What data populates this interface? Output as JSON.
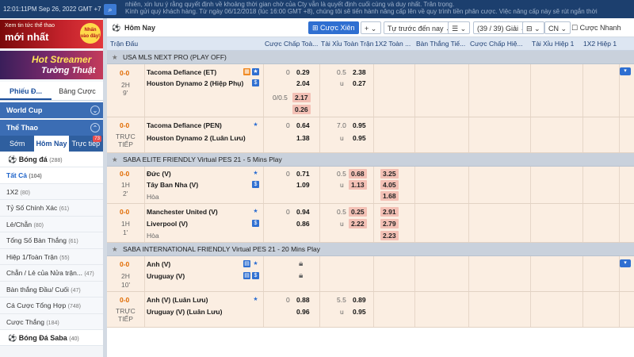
{
  "topbar": {
    "clock": "12:01:11PM Sep 26, 2022 GMT +7",
    "marquee_line1": "nhiên, xin lưu ý rằng quyết định về khoảng thời gian chờ của Cty vẫn là quyết định cuối cùng và duy nhất. Trân trọng.",
    "marquee_line2": "Kính gửi quý khách hàng. Từ ngày 06/12/2018 (lúc 16:00 GMT +8), chúng tôi sẽ tiến hành nâng cấp lên về quy trình tiền phân cược. Việc nâng cấp này sẽ rút ngắn thời"
  },
  "sidebar": {
    "banner1": {
      "small": "Xem tin tức thể thao",
      "big": "mới nhất",
      "badge": "Nhấn vào đây!"
    },
    "banner2": {
      "big": "Hot Streamer",
      "big2": "Tường Thuật"
    },
    "tabs": [
      "Phiếu Đ...",
      "Bảng Cược"
    ],
    "world_cup": "World Cup",
    "the_thao": "Thể Thao",
    "subtabs": [
      "Sớm",
      "Hôm Nay",
      "Trực tiếp"
    ],
    "live_count": "73",
    "bong_da": {
      "label": "Bóng đá",
      "count": "(288)"
    },
    "menu": [
      {
        "label": "Tất Cả",
        "count": "(104)"
      },
      {
        "label": "1X2",
        "count": "(80)"
      },
      {
        "label": "Tỷ Số Chính Xác",
        "count": "(61)"
      },
      {
        "label": "Lẻ/Chẵn",
        "count": "(80)"
      },
      {
        "label": "Tổng Số Bàn Thắng",
        "count": "(61)"
      },
      {
        "label": "Hiệp 1/Toàn Trận",
        "count": "(55)"
      },
      {
        "label": "Chẵn / Lẻ của Nửa trận...",
        "count": "(47)"
      },
      {
        "label": "Bàn thắng Đầu/ Cuối",
        "count": "(47)"
      },
      {
        "label": "Cá Cược Tổng Hợp",
        "count": "(748)"
      },
      {
        "label": "Cược Thắng",
        "count": "(184)"
      }
    ],
    "bong_da_saba": {
      "label": "Bóng Đá Saba",
      "count": "(40)"
    }
  },
  "toolbar": {
    "title": "Hôm Nay",
    "cuoc_xien": "Cược Xiên",
    "plus": "+",
    "sort": "Tự trước đến nay",
    "count": "(39 / 39) Giải",
    "lang": "CN",
    "cuoc_nhanh": "Cược Nhanh"
  },
  "columns": [
    "Trận Đấu",
    "Cược Chấp Toà...",
    "Tài Xỉu Toàn Trận",
    "1X2 Toàn ...",
    "Bàn Thắng Tiế...",
    "Cược Chấp Hiệ...",
    "Tài Xỉu Hiệp 1",
    "1X2 Hiệp 1"
  ],
  "leagues": [
    {
      "name": "USA MLS NEXT PRO (PLAY OFF)"
    },
    {
      "name": "SABA ELITE FRIENDLY Virtual PES 21 - 5 Mins Play"
    },
    {
      "name": "SABA INTERNATIONAL FRIENDLY Virtual PES 21 - 20 Mins Play"
    }
  ],
  "matches": {
    "m1": {
      "score": "0-0",
      "half": "2H",
      "minute": "9'",
      "home": "Tacoma Defiance (ET)",
      "away": "Houston Dynamo 2 (Hiệp Phụ)",
      "hdp1": "0",
      "o1h": "0.29",
      "o1a": "2.04",
      "ou1": "0.5",
      "u": "u",
      "ou1o": "2.38",
      "ou1u": "0.27",
      "hdp2": "0/0.5",
      "o2h": "2.17",
      "o2a": "0.26"
    },
    "m2": {
      "score": "0-0",
      "half": "TRỰC",
      "minute": "TIẾP",
      "home": "Tacoma Defiance (PEN)",
      "away": "Houston Dynamo 2 (Luân Lưu)",
      "hdp": "0",
      "oh": "0.64",
      "oa": "1.38",
      "ou": "7.0",
      "u": "u",
      "ouo": "0.95",
      "ouu": "0.95"
    },
    "m3": {
      "score": "0-0",
      "half": "1H",
      "minute": "2'",
      "home": "Đức (V)",
      "away": "Tây Ban Nha (V)",
      "draw": "Hòa",
      "hdp": "0",
      "oh": "0.71",
      "oa": "1.09",
      "ou": "0.5",
      "u": "u",
      "ouo": "0.68",
      "ouu": "1.13",
      "x1": "3.25",
      "x2": "4.05",
      "xd": "1.68"
    },
    "m4": {
      "score": "0-0",
      "half": "1H",
      "minute": "1'",
      "home": "Manchester United (V)",
      "away": "Liverpool (V)",
      "draw": "Hòa",
      "hdp": "0",
      "oh": "0.94",
      "oa": "0.86",
      "ou": "0.5",
      "u": "u",
      "ouo": "0.25",
      "ouu": "2.22",
      "x1": "2.91",
      "x2": "2.79",
      "xd": "2.23"
    },
    "m5": {
      "score": "0-0",
      "half": "2H",
      "minute": "10'",
      "home": "Anh (V)",
      "away": "Uruguay (V)"
    },
    "m6": {
      "score": "0-0",
      "half": "TRỰC",
      "minute": "TIẾP",
      "home": "Anh (V) (Luân Lưu)",
      "away": "Uruguay (V) (Luân Lưu)",
      "hdp": "0",
      "oh": "0.88",
      "oa": "0.96",
      "ou": "5.5",
      "u": "u",
      "ouo": "0.89",
      "ouu": "0.95"
    }
  }
}
